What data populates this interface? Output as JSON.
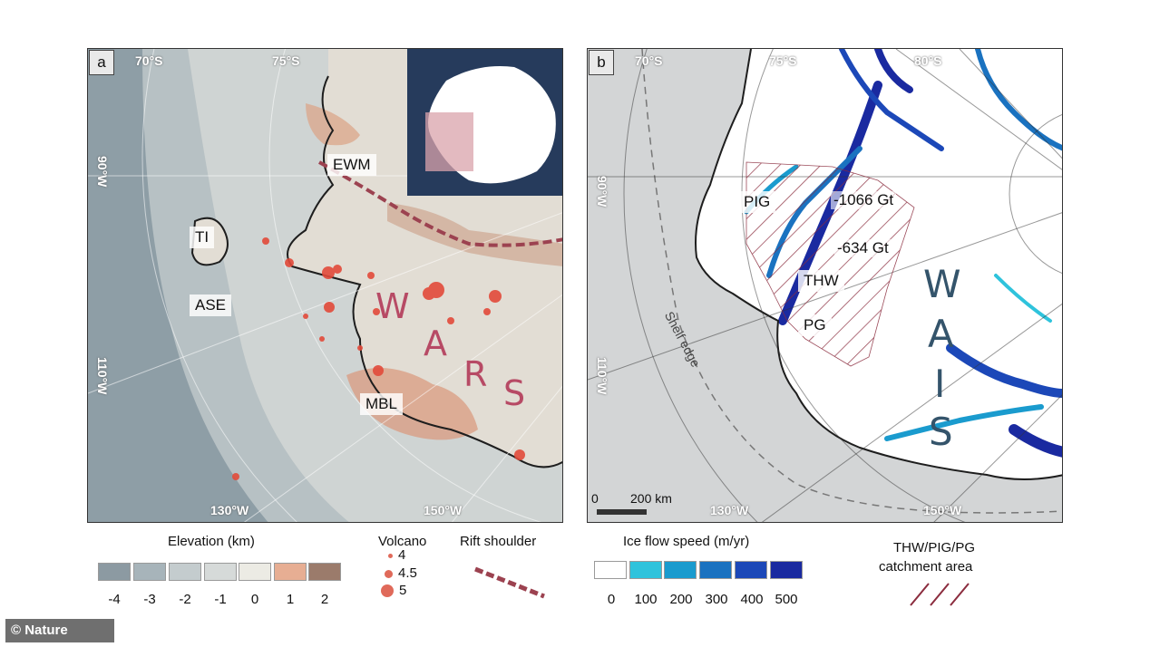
{
  "panel_a": {
    "letter": "a",
    "lat_70": "70°S",
    "lat_75": "75°S",
    "lon_90": "90°W",
    "lon_110": "110°W",
    "lon_130": "130°W",
    "lon_150": "150°W",
    "labels": {
      "ewm": "EWM",
      "ti": "TI",
      "ase": "ASE",
      "mbl": "MBL"
    },
    "wars_letters": [
      "W",
      "A",
      "R",
      "S"
    ]
  },
  "panel_b": {
    "letter": "b",
    "lat_70": "70°S",
    "lat_75": "75°S",
    "lat_80": "80°S",
    "lon_90": "90°W",
    "lon_110": "110°W",
    "lon_130": "130°W",
    "lon_150": "150°W",
    "labels": {
      "pig": "PIG",
      "thw": "THW",
      "pg": "PG"
    },
    "mass_loss_1": "-1066 Gt",
    "mass_loss_2": "-634 Gt",
    "shelf_edge": "Shelf edge",
    "scale_0": "0",
    "scale_200": "200 km",
    "wais_letters": [
      "W",
      "A",
      "I",
      "S"
    ]
  },
  "legend": {
    "elevation_title": "Elevation (km)",
    "elevation_ticks": [
      "-4",
      "-3",
      "-2",
      "-1",
      "0",
      "1",
      "2"
    ],
    "elevation_colors": [
      "#8c9aa2",
      "#a7b4ba",
      "#c4ccce",
      "#d6dad9",
      "#ecebe4",
      "#e7ae93",
      "#9b7b6b"
    ],
    "volcano_title": "Volcano",
    "volcano_sizes": [
      "4",
      "4.5",
      "5"
    ],
    "rift_title": "Rift shoulder",
    "rift_color": "#9c4250",
    "ice_title": "Ice flow speed (m/yr)",
    "ice_ticks": [
      "0",
      "100",
      "200",
      "300",
      "400",
      "500"
    ],
    "ice_colors": [
      "#ffffff",
      "#2fc3dc",
      "#1a9bce",
      "#1a72c0",
      "#1c48b8",
      "#1a2aa0"
    ],
    "catchment_title_1": "THW/PIG/PG",
    "catchment_title_2": "catchment area"
  },
  "watermark": "© Nature"
}
